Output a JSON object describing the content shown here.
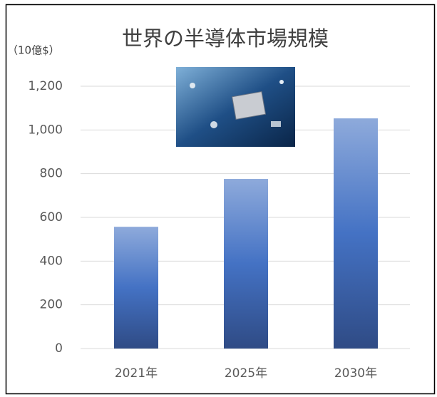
{
  "chart_data": {
    "type": "bar",
    "title": "世界の半導体市場規模",
    "ylabel": "（10億$）",
    "categories": [
      "2021年",
      "2025年",
      "2030年"
    ],
    "values": [
      557,
      776,
      1053
    ],
    "color": "#4472c4",
    "ylim": [
      0,
      1200
    ],
    "yticks": [
      0,
      200,
      400,
      600,
      800,
      {
        "value": 1000,
        "label": "1,000"
      },
      {
        "value": 1200,
        "label": "1,200"
      }
    ],
    "grid": true
  }
}
